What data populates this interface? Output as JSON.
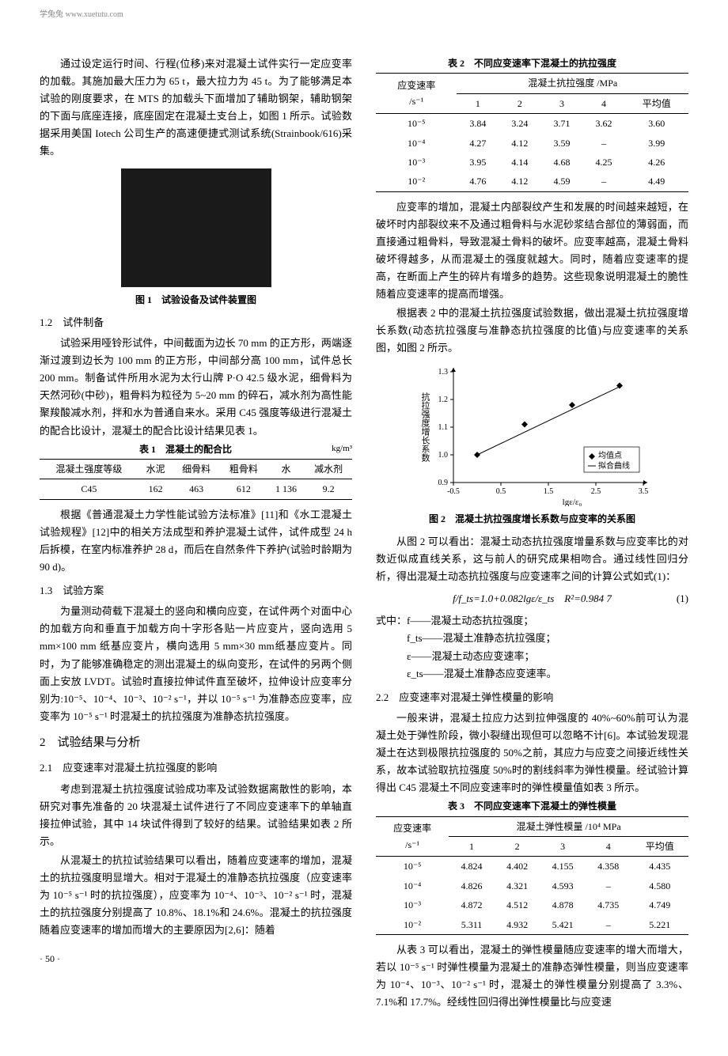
{
  "header_url": "学兔兔 www.xuetutu.com",
  "left_col": {
    "para1": "通过设定运行时间、行程(位移)来对混凝土试件实行一定应变率的加载。其施加最大压力为 65 t，最大拉力为 45 t。为了能够满足本试验的刚度要求，在 MTS 的加载头下面增加了辅助钢架，辅助钢架的下面与底座连接，底座固定在混凝土支台上，如图 1 所示。试验数据采用美国 Iotech 公司生产的高速便捷式测试系统(Strainbook/616)采集。",
    "fig1_caption": "图 1　试验设备及试件装置图",
    "heading_1_2": "1.2　试件制备",
    "para2": "试验采用哑铃形试件，中间截面为边长 70 mm 的正方形，两端逐渐过渡到边长为 100 mm 的正方形，中间部分高 100 mm，试件总长 200 mm。制备试件所用水泥为太行山牌 P·O 42.5 级水泥，细骨料为天然河砂(中砂)，粗骨料为粒径为 5~20 mm 的碎石，减水剂为高性能聚羧酸减水剂，拌和水为普通自来水。采用 C45 强度等级进行混凝土的配合比设计，混凝土的配合比设计结果见表 1。",
    "table1_caption": "表 1　混凝土的配合比",
    "table1_unit": "kg/m³",
    "table1": {
      "headers": [
        "混凝土强度等级",
        "水泥",
        "细骨料",
        "粗骨料",
        "水",
        "减水剂"
      ],
      "row": [
        "C45",
        "162",
        "463",
        "612",
        "1 136",
        "9.2"
      ]
    },
    "para3": "根据《普通混凝土力学性能试验方法标准》[11]和《水工混凝土试验规程》[12]中的相关方法成型和养护混凝土试件，试件成型 24 h 后拆模，在室内标准养护 28 d，而后在自然条件下养护(试验时龄期为 90 d)。",
    "heading_1_3": "1.3　试验方案",
    "para4": "为量测动荷载下混凝土的竖向和横向应变，在试件两个对面中心的加载方向和垂直于加载方向十字形各贴一片应变片，竖向选用 5 mm×100 mm 纸基应变片，横向选用 5 mm×30 mm纸基应变片。同时，为了能够准确稳定的测出混凝土的纵向变形，在试件的另两个侧面上安放 LVDT。试验时直接拉伸试件直至破坏，拉伸设计应变率分别为:10⁻⁵、10⁻⁴、10⁻³、10⁻² s⁻¹，并以 10⁻⁵ s⁻¹ 为准静态应变率，应变率为 10⁻⁵ s⁻¹ 时混凝土的抗拉强度为准静态抗拉强度。",
    "heading_2": "2　试验结果与分析",
    "heading_2_1": "2.1　应变速率对混凝土抗拉强度的影响",
    "para5": "考虑到混凝土抗拉强度试验成功率及试验数据离散性的影响，本研究对事先准备的 20 块混凝土试件进行了不同应变速率下的单轴直接拉伸试验，其中 14 块试件得到了较好的结果。试验结果如表 2 所示。",
    "para6": "从混凝土的抗拉试验结果可以看出，随着应变速率的增加，混凝土的抗拉强度明显增大。相对于混凝土的准静态抗拉强度（应变速率为 10⁻⁵ s⁻¹ 时的抗拉强度），应变率为 10⁻⁴、10⁻³、10⁻² s⁻¹ 时，混凝土的抗拉强度分别提高了 10.8%、18.1%和 24.6%。混凝土的抗拉强度随着应变速率的增加而增大的主要原因为[2,6]：随着"
  },
  "right_col": {
    "table2_caption": "表 2　不同应变速率下混凝土的抗拉强度",
    "table2": {
      "col1_header": "应变速率",
      "col1_unit": "/s⁻¹",
      "group_header": "混凝土抗拉强度 /MPa",
      "sub_headers": [
        "1",
        "2",
        "3",
        "4",
        "平均值"
      ],
      "rows": [
        [
          "10⁻⁵",
          "3.84",
          "3.24",
          "3.71",
          "3.62",
          "3.60"
        ],
        [
          "10⁻⁴",
          "4.27",
          "4.12",
          "3.59",
          "–",
          "3.99"
        ],
        [
          "10⁻³",
          "3.95",
          "4.14",
          "4.68",
          "4.25",
          "4.26"
        ],
        [
          "10⁻²",
          "4.76",
          "4.12",
          "4.59",
          "–",
          "4.49"
        ]
      ]
    },
    "para7": "应变率的增加，混凝土内部裂纹产生和发展的时间越来越短，在破坏时内部裂纹来不及通过粗骨料与水泥砂浆结合部位的薄弱面，而直接通过粗骨料，导致混凝土骨料的破坏。应变率越高，混凝土骨料破坏得越多，从而混凝土的强度就越大。同时，随着应变速率的提高，在断面上产生的碎片有增多的趋势。这些现象说明混凝土的脆性随着应变速率的提高而增强。",
    "para8": "根据表 2 中的混凝土抗拉强度试验数据，做出混凝土抗拉强度增长系数(动态抗拉强度与准静态抗拉强度的比值)与应变速率的关系图，如图 2 所示。",
    "chart": {
      "ylabel": "抗拉强度增长系数",
      "xlabel": "lgε/ε₀",
      "xlim": [
        -0.5,
        3.5
      ],
      "ylim": [
        0.9,
        1.3
      ],
      "xticks": [
        -0.5,
        0.5,
        1.5,
        2.5,
        3.5
      ],
      "yticks": [
        0.9,
        1.0,
        1.1,
        1.2,
        1.3
      ],
      "points": [
        [
          0,
          1.0
        ],
        [
          1,
          1.11
        ],
        [
          2,
          1.18
        ],
        [
          3,
          1.25
        ]
      ],
      "legend": [
        "均值点",
        "拟合曲线"
      ],
      "point_color": "#000000",
      "line_color": "#000000",
      "axis_color": "#000000"
    },
    "fig2_caption": "图 2　混凝土抗拉强度增长系数与应变率的关系图",
    "para9": "从图 2 可以看出：混凝土动态抗拉强度增量系数与应变率比的对数近似成直线关系，这与前人的研究成果相吻合。通过线性回归分析，得出混凝土动态抗拉强度与应变速率之间的计算公式如式(1)：",
    "equation1": "f/f_ts=1.0+0.082lgε/ε_ts　R²=0.984 7",
    "equation1_num": "(1)",
    "def_intro": "式中：f——混凝土动态抗拉强度；",
    "def_fts": "f_ts——混凝土准静态抗拉强度；",
    "def_eps": "ε——混凝土动态应变速率；",
    "def_epsts": "ε_ts——混凝土准静态应变速率。",
    "heading_2_2": "2.2　应变速率对混凝土弹性模量的影响",
    "para10": "一般来讲，混凝土拉应力达到拉伸强度的 40%~60%前可认为混凝土处于弹性阶段，微小裂缝出现但可以忽略不计[6]。本试验发现混凝土在达到极限抗拉强度的 50%之前，其应力与应变之间接近线性关系，故本试验取抗拉强度 50%时的割线斜率为弹性模量。经试验计算得出 C45 混凝土不同应变速率时的弹性模量值如表 3 所示。",
    "table3_caption": "表 3　不同应变速率下混凝土的弹性模量",
    "table3": {
      "col1_header": "应变速率",
      "col1_unit": "/s⁻¹",
      "group_header": "混凝土弹性模量 /10⁴ MPa",
      "sub_headers": [
        "1",
        "2",
        "3",
        "4",
        "平均值"
      ],
      "rows": [
        [
          "10⁻⁵",
          "4.824",
          "4.402",
          "4.155",
          "4.358",
          "4.435"
        ],
        [
          "10⁻⁴",
          "4.826",
          "4.321",
          "4.593",
          "–",
          "4.580"
        ],
        [
          "10⁻³",
          "4.872",
          "4.512",
          "4.878",
          "4.735",
          "4.749"
        ],
        [
          "10⁻²",
          "5.311",
          "4.932",
          "5.421",
          "–",
          "5.221"
        ]
      ]
    },
    "para11": "从表 3 可以看出，混凝土的弹性模量随应变速率的增大而增大，若以 10⁻⁵ s⁻¹ 时弹性模量为混凝土的准静态弹性模量，则当应变速率为 10⁻⁴、10⁻³、10⁻² s⁻¹ 时，混凝土的弹性模量分别提高了 3.3%、7.1%和 17.7%。经线性回归得出弹性模量比与应变速"
  },
  "page_number": "· 50 ·"
}
